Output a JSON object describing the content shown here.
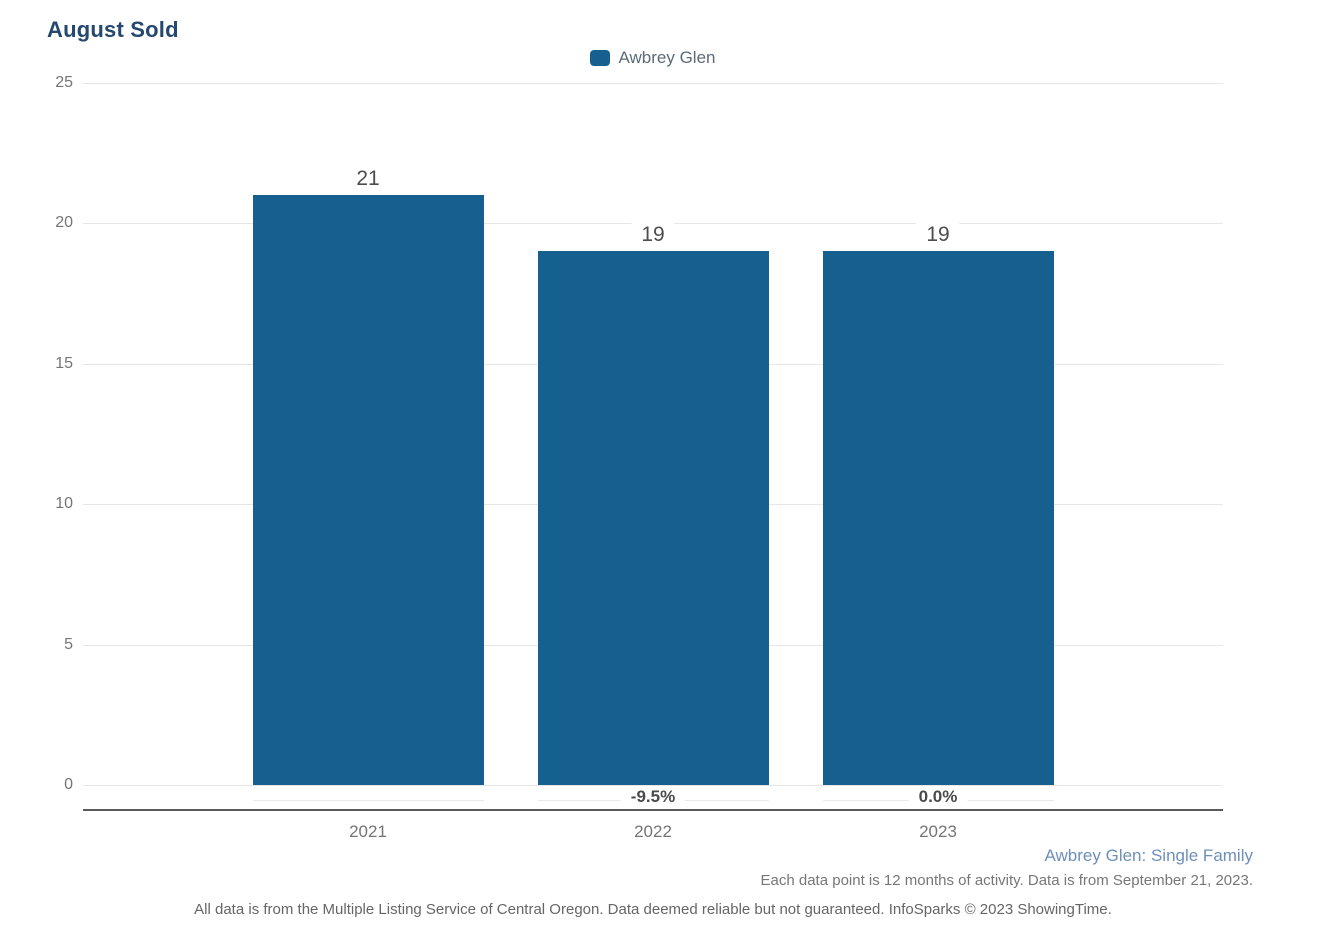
{
  "chart": {
    "title": "August Sold",
    "legend": [
      {
        "label": "Awbrey Glen",
        "color": "#15608F"
      }
    ]
  },
  "chart_data": {
    "type": "bar",
    "title": "August Sold",
    "categories": [
      "2021",
      "2022",
      "2023"
    ],
    "series": [
      {
        "name": "Awbrey Glen",
        "values": [
          21,
          19,
          19
        ]
      }
    ],
    "value_labels": [
      "21",
      "19",
      "19"
    ],
    "pct_change_labels": [
      null,
      "-9.5%",
      "0.0%"
    ],
    "ylim": [
      0,
      25
    ],
    "yticks": [
      0,
      5,
      10,
      15,
      20,
      25
    ],
    "xlabel": "",
    "ylabel": "",
    "grid": true,
    "legend_position": "top-center",
    "bar_color": "#15608F"
  },
  "footnotes": {
    "series_descriptor": "Awbrey Glen: Single Family",
    "period_note": "Each data point is 12 months of activity. Data is from September 21, 2023.",
    "disclaimer": "All data is from the Multiple Listing Service of Central Oregon. Data deemed reliable but not guaranteed. InfoSparks © 2023 ShowingTime."
  },
  "colors": {
    "bar": "#15608F",
    "title": "#25496E",
    "legend_text": "#5C6B78",
    "axis_text": "#757575",
    "value_label": "#4D4D4D",
    "pct_label": "#4A4A4A",
    "gridline": "#E6E6E6",
    "axis_line": "#595959",
    "series_note": "#6E8FB9",
    "period_note": "#777777",
    "disclaimer": "#666666"
  }
}
